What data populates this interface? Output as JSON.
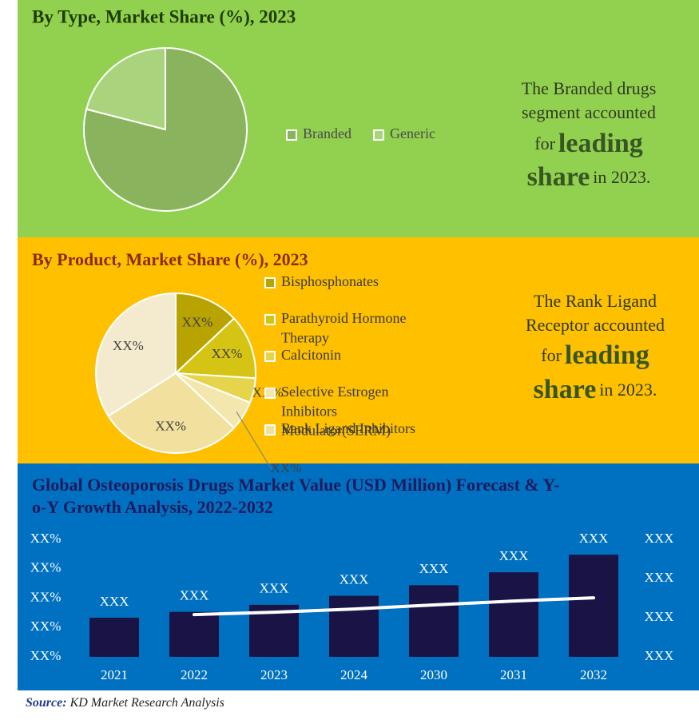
{
  "chart_data": [
    {
      "type": "pie",
      "title": "By Type, Market Share (%), 2023",
      "categories": [
        "Branded",
        "Generic"
      ],
      "values": [
        79,
        21
      ],
      "colors": [
        "#8ab35e",
        "#a9d47d"
      ]
    },
    {
      "type": "pie",
      "title": "By Product, Market Share (%), 2023",
      "categories": [
        "Bisphosphonates",
        "Parathyroid Hormone Therapy",
        "Calcitonin",
        "Selective Estrogen Inhibitors Modulator(SERM)",
        "Rank Ligand Inhibitors",
        null
      ],
      "values": [
        13,
        13,
        5,
        6,
        29,
        34
      ],
      "value_labels": [
        "XX%",
        "XX%",
        "XX%",
        "XX%",
        "XX%",
        "XX%"
      ],
      "colors": [
        "#b8a300",
        "#d6c414",
        "#e6d54a",
        "#f3e7ad",
        "#f1e09e",
        "#f4ebcf"
      ]
    },
    {
      "type": "bar",
      "title": [
        "Global Osteoporosis Drugs Market Value (USD Million) Forecast & Y-",
        "o-Y Growth Analysis, 2022-2032"
      ],
      "categories": [
        "2021",
        "2022",
        "2023",
        "2024",
        "2030",
        "2031",
        "2032"
      ],
      "series": [
        {
          "color": "#1a1446",
          "axis": "y2",
          "values": [
            1.0,
            1.15,
            1.33,
            1.56,
            1.83,
            2.16,
            2.61
          ],
          "value_labels": [
            "XXX",
            "XXX",
            "XXX",
            "XXX",
            "XXX",
            "XXX",
            "XXX"
          ]
        },
        {
          "type": "line",
          "color": "#ffffff",
          "values": [
            null,
            1.44,
            1.52,
            1.63,
            1.77,
            1.9,
            2.01
          ]
        }
      ],
      "ylim": [
        0,
        4
      ],
      "yticks": [
        {
          "value": 0,
          "label": "XX%"
        },
        {
          "value": 1,
          "label": "XX%"
        },
        {
          "value": 2,
          "label": "XX%"
        },
        {
          "value": 3,
          "label": "XX%"
        },
        {
          "value": 4,
          "label": "XX%"
        }
      ],
      "y2lim": [
        0,
        3
      ],
      "y2ticks": [
        {
          "value": 0,
          "label": "XXX"
        },
        {
          "value": 1,
          "label": "XXX"
        },
        {
          "value": 2,
          "label": "XXX"
        },
        {
          "value": 3,
          "label": "XXX"
        }
      ]
    }
  ],
  "callouts": [
    {
      "lines": [
        "The Branded drugs",
        "segment accounted"
      ],
      "pre": "for",
      "emphasis": [
        "leading",
        "share"
      ],
      "post": "in 2023."
    },
    {
      "lines": [
        "The Rank Ligand",
        "Receptor accounted"
      ],
      "pre": "for",
      "emphasis": [
        "leading",
        "share"
      ],
      "post": "in 2023."
    }
  ],
  "source": {
    "label": "Source:",
    "text": "KD Market Research Analysis"
  }
}
